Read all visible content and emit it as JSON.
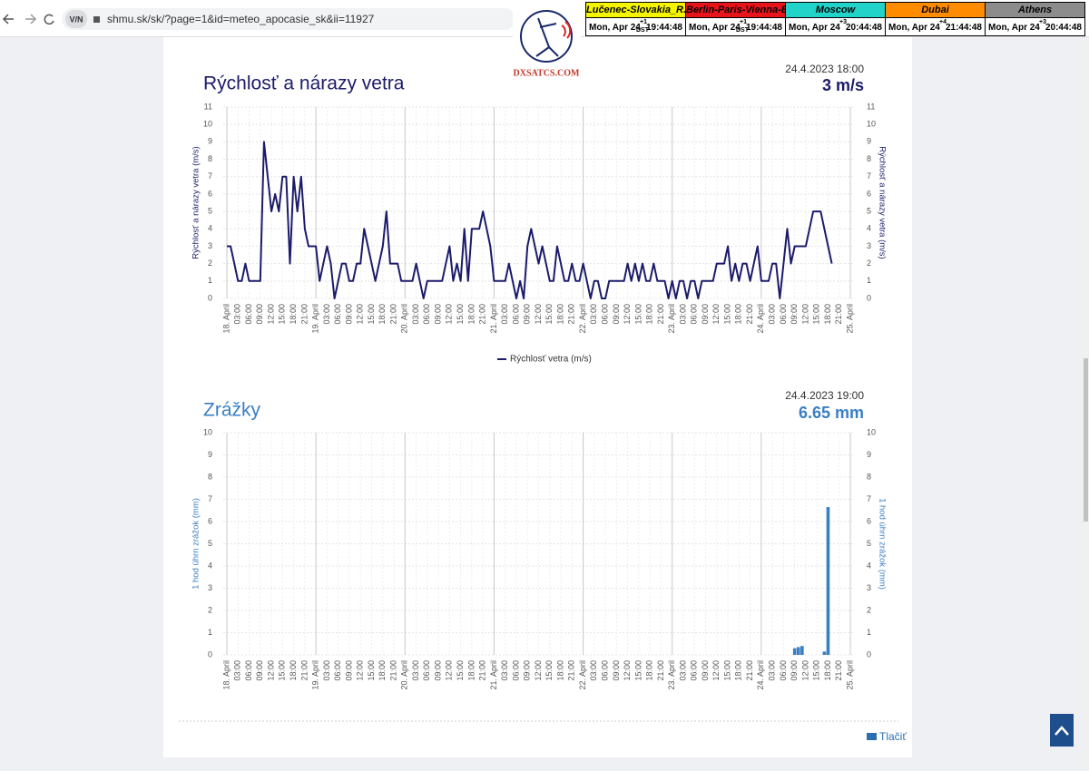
{
  "browser": {
    "url": "shmu.sk/sk/?page=1&id=meteo_apocasie_sk&ii=11927"
  },
  "logo": "DXSATCS.COM",
  "clocks": [
    {
      "name": "Lučenec-Slovakia_R.Dávid",
      "color": "#f5f500",
      "date": "Mon, Apr 24",
      "offset": "+1",
      "dst": "DST",
      "time": "19:44:48"
    },
    {
      "name": "Berlin-Paris-Vienna-Belgrade",
      "color": "#e8141c",
      "date": "Mon, Apr 24",
      "offset": "+1",
      "dst": "DST",
      "time": "19:44:48"
    },
    {
      "name": "Moscow",
      "color": "#22d3c9",
      "date": "Mon, Apr 24",
      "offset": "+3",
      "time": "20:44:48"
    },
    {
      "name": "Dubai",
      "color": "#ff8c00",
      "date": "Mon, Apr 24",
      "offset": "+4",
      "time": "21:44:48"
    },
    {
      "name": "Athens",
      "color": "#8c8c8c",
      "date": "Mon, Apr 24",
      "offset": "+3",
      "time": "20:44:48"
    }
  ],
  "print_label": "Tlačiť",
  "chart_data": [
    {
      "type": "line",
      "title": "Rýchlosť a nárazy vetra",
      "subtitle": "24.4.2023 18:00",
      "current_value": "3 m/s",
      "ylabel": "Rýchlosť a nárazy vetra (m/s)",
      "y2label": "Rýchlosť a nárazy vetra (m/s)",
      "xlim": [
        0,
        168
      ],
      "xticks": [
        {
          "value": 0,
          "label": "18. April"
        },
        {
          "value": 3,
          "label": "03:00"
        },
        {
          "value": 6,
          "label": "06:00"
        },
        {
          "value": 9,
          "label": "09:00"
        },
        {
          "value": 12,
          "label": "12:00"
        },
        {
          "value": 15,
          "label": "15:00"
        },
        {
          "value": 18,
          "label": "18:00"
        },
        {
          "value": 21,
          "label": "21:00"
        },
        {
          "value": 24,
          "label": "19. April"
        },
        {
          "value": 27,
          "label": "03:00"
        },
        {
          "value": 30,
          "label": "06:00"
        },
        {
          "value": 33,
          "label": "09:00"
        },
        {
          "value": 36,
          "label": "12:00"
        },
        {
          "value": 39,
          "label": "15:00"
        },
        {
          "value": 42,
          "label": "18:00"
        },
        {
          "value": 45,
          "label": "21:00"
        },
        {
          "value": 48,
          "label": "20. April"
        },
        {
          "value": 51,
          "label": "03:00"
        },
        {
          "value": 54,
          "label": "06:00"
        },
        {
          "value": 57,
          "label": "09:00"
        },
        {
          "value": 60,
          "label": "12:00"
        },
        {
          "value": 63,
          "label": "15:00"
        },
        {
          "value": 66,
          "label": "18:00"
        },
        {
          "value": 69,
          "label": "21:00"
        },
        {
          "value": 72,
          "label": "21. April"
        },
        {
          "value": 75,
          "label": "03:00"
        },
        {
          "value": 78,
          "label": "06:00"
        },
        {
          "value": 81,
          "label": "09:00"
        },
        {
          "value": 84,
          "label": "12:00"
        },
        {
          "value": 87,
          "label": "15:00"
        },
        {
          "value": 90,
          "label": "18:00"
        },
        {
          "value": 93,
          "label": "21:00"
        },
        {
          "value": 96,
          "label": "22. April"
        },
        {
          "value": 99,
          "label": "03:00"
        },
        {
          "value": 102,
          "label": "06:00"
        },
        {
          "value": 105,
          "label": "09:00"
        },
        {
          "value": 108,
          "label": "12:00"
        },
        {
          "value": 111,
          "label": "15:00"
        },
        {
          "value": 114,
          "label": "18:00"
        },
        {
          "value": 117,
          "label": "21:00"
        },
        {
          "value": 120,
          "label": "23. April"
        },
        {
          "value": 123,
          "label": "03:00"
        },
        {
          "value": 126,
          "label": "06:00"
        },
        {
          "value": 129,
          "label": "09:00"
        },
        {
          "value": 132,
          "label": "12:00"
        },
        {
          "value": 135,
          "label": "15:00"
        },
        {
          "value": 138,
          "label": "18:00"
        },
        {
          "value": 141,
          "label": "21:00"
        },
        {
          "value": 144,
          "label": "24. April"
        },
        {
          "value": 147,
          "label": "03:00"
        },
        {
          "value": 150,
          "label": "06:00"
        },
        {
          "value": 153,
          "label": "09:00"
        },
        {
          "value": 156,
          "label": "12:00"
        },
        {
          "value": 159,
          "label": "15:00"
        },
        {
          "value": 162,
          "label": "18:00"
        },
        {
          "value": 165,
          "label": "21:00"
        },
        {
          "value": 168,
          "label": "25. April"
        }
      ],
      "ylim": [
        0,
        11
      ],
      "yticks": [
        0,
        1,
        2,
        3,
        4,
        5,
        6,
        7,
        8,
        9,
        10,
        11
      ],
      "y2lim": [
        0,
        11
      ],
      "y2ticks": [
        0,
        1,
        2,
        3,
        4,
        5,
        6,
        7,
        8,
        9,
        10,
        11
      ],
      "grid": true,
      "legend": "bottom",
      "x": [
        0,
        1,
        2,
        3,
        4,
        5,
        6,
        7,
        8,
        9,
        10,
        11,
        12,
        13,
        14,
        15,
        16,
        17,
        18,
        19,
        20,
        21,
        22,
        23,
        24,
        25,
        26,
        27,
        28,
        29,
        30,
        31,
        32,
        33,
        34,
        35,
        36,
        37,
        38,
        39,
        40,
        41,
        42,
        43,
        44,
        45,
        46,
        47,
        48,
        49,
        50,
        51,
        52,
        53,
        54,
        55,
        56,
        57,
        58,
        59,
        60,
        61,
        62,
        63,
        64,
        65,
        66,
        67,
        68,
        69,
        70,
        71,
        72,
        73,
        74,
        75,
        76,
        77,
        78,
        79,
        80,
        81,
        82,
        83,
        84,
        85,
        86,
        87,
        88,
        89,
        90,
        91,
        92,
        93,
        94,
        95,
        96,
        97,
        98,
        99,
        100,
        101,
        102,
        103,
        104,
        105,
        106,
        107,
        108,
        109,
        110,
        111,
        112,
        113,
        114,
        115,
        116,
        117,
        118,
        119,
        120,
        121,
        122,
        123,
        124,
        125,
        126,
        127,
        128,
        129,
        130,
        131,
        132,
        133,
        134,
        135,
        136,
        137,
        138,
        139,
        140,
        141,
        142,
        143,
        144,
        145,
        146,
        147,
        148,
        149,
        150,
        151,
        152,
        153,
        154,
        155,
        156,
        157,
        158,
        159,
        160,
        161,
        162,
        163
      ],
      "series": [
        {
          "name": "Rýchlosť vetra (m/s)",
          "color": "#1b1b6b",
          "values": [
            3,
            3,
            2,
            1,
            1,
            2,
            1,
            1,
            1,
            1,
            9,
            7,
            5,
            6,
            5,
            7,
            7,
            2,
            7,
            5,
            7,
            4,
            3,
            3,
            3,
            1,
            2,
            3,
            2,
            0,
            1,
            2,
            2,
            1,
            1,
            2,
            2,
            4,
            3,
            2,
            1,
            2,
            3,
            5,
            2,
            2,
            2,
            1,
            1,
            1,
            1,
            2,
            1,
            0,
            1,
            1,
            1,
            1,
            1,
            2,
            3,
            1,
            2,
            1,
            4,
            1,
            4,
            4,
            4,
            5,
            4,
            3,
            1,
            1,
            1,
            1,
            2,
            1,
            0,
            1,
            0,
            3,
            4,
            3,
            2,
            3,
            2,
            1,
            1,
            3,
            2,
            1,
            1,
            2,
            1,
            1,
            2,
            1,
            0,
            1,
            1,
            0,
            0,
            1,
            1,
            1,
            1,
            1,
            2,
            1,
            2,
            1,
            2,
            1,
            1,
            2,
            1,
            1,
            1,
            0,
            1,
            0,
            1,
            1,
            0,
            1,
            1,
            0,
            1,
            1,
            1,
            1,
            2,
            2,
            2,
            3,
            1,
            2,
            1,
            2,
            2,
            1,
            2,
            3,
            1,
            1,
            1,
            2,
            2,
            0,
            2,
            4,
            2,
            3,
            3,
            3,
            3,
            4,
            5,
            5,
            5,
            4,
            3,
            2
          ]
        }
      ]
    },
    {
      "type": "bar",
      "title": "Zrážky",
      "subtitle": "24.4.2023 19:00",
      "current_value": "6.65 mm",
      "ylabel": "1 hod úhrn zrážok (mm)",
      "y2label": "1 hod úhrn zrážok (mm)",
      "xlim": [
        0,
        168
      ],
      "xticks": [
        {
          "value": 0,
          "label": "18. April"
        },
        {
          "value": 3,
          "label": "03:00"
        },
        {
          "value": 6,
          "label": "06:00"
        },
        {
          "value": 9,
          "label": "09:00"
        },
        {
          "value": 12,
          "label": "12:00"
        },
        {
          "value": 15,
          "label": "15:00"
        },
        {
          "value": 18,
          "label": "18:00"
        },
        {
          "value": 21,
          "label": "21:00"
        },
        {
          "value": 24,
          "label": "19. April"
        },
        {
          "value": 27,
          "label": "03:00"
        },
        {
          "value": 30,
          "label": "06:00"
        },
        {
          "value": 33,
          "label": "09:00"
        },
        {
          "value": 36,
          "label": "12:00"
        },
        {
          "value": 39,
          "label": "15:00"
        },
        {
          "value": 42,
          "label": "18:00"
        },
        {
          "value": 45,
          "label": "21:00"
        },
        {
          "value": 48,
          "label": "20. April"
        },
        {
          "value": 51,
          "label": "03:00"
        },
        {
          "value": 54,
          "label": "06:00"
        },
        {
          "value": 57,
          "label": "09:00"
        },
        {
          "value": 60,
          "label": "12:00"
        },
        {
          "value": 63,
          "label": "15:00"
        },
        {
          "value": 66,
          "label": "18:00"
        },
        {
          "value": 69,
          "label": "21:00"
        },
        {
          "value": 72,
          "label": "21. April"
        },
        {
          "value": 75,
          "label": "03:00"
        },
        {
          "value": 78,
          "label": "06:00"
        },
        {
          "value": 81,
          "label": "09:00"
        },
        {
          "value": 84,
          "label": "12:00"
        },
        {
          "value": 87,
          "label": "15:00"
        },
        {
          "value": 90,
          "label": "18:00"
        },
        {
          "value": 93,
          "label": "21:00"
        },
        {
          "value": 96,
          "label": "22. April"
        },
        {
          "value": 99,
          "label": "03:00"
        },
        {
          "value": 102,
          "label": "06:00"
        },
        {
          "value": 105,
          "label": "09:00"
        },
        {
          "value": 108,
          "label": "12:00"
        },
        {
          "value": 111,
          "label": "15:00"
        },
        {
          "value": 114,
          "label": "18:00"
        },
        {
          "value": 117,
          "label": "21:00"
        },
        {
          "value": 120,
          "label": "23. April"
        },
        {
          "value": 123,
          "label": "03:00"
        },
        {
          "value": 126,
          "label": "06:00"
        },
        {
          "value": 129,
          "label": "09:00"
        },
        {
          "value": 132,
          "label": "12:00"
        },
        {
          "value": 135,
          "label": "15:00"
        },
        {
          "value": 138,
          "label": "18:00"
        },
        {
          "value": 141,
          "label": "21:00"
        },
        {
          "value": 144,
          "label": "24. April"
        },
        {
          "value": 147,
          "label": "03:00"
        },
        {
          "value": 150,
          "label": "06:00"
        },
        {
          "value": 153,
          "label": "09:00"
        },
        {
          "value": 156,
          "label": "12:00"
        },
        {
          "value": 159,
          "label": "15:00"
        },
        {
          "value": 162,
          "label": "18:00"
        },
        {
          "value": 165,
          "label": "21:00"
        },
        {
          "value": 168,
          "label": "25. April"
        }
      ],
      "ylim": [
        0,
        10
      ],
      "yticks": [
        0,
        1,
        2,
        3,
        4,
        5,
        6,
        7,
        8,
        9,
        10
      ],
      "y2lim": [
        0,
        10
      ],
      "y2ticks": [
        0,
        1,
        2,
        3,
        4,
        5,
        6,
        7,
        8,
        9,
        10
      ],
      "grid": true,
      "x": [
        153,
        154,
        155,
        161,
        162
      ],
      "values": [
        0.3,
        0.35,
        0.4,
        0.15,
        6.65
      ],
      "color": "#3a7fc4"
    }
  ]
}
